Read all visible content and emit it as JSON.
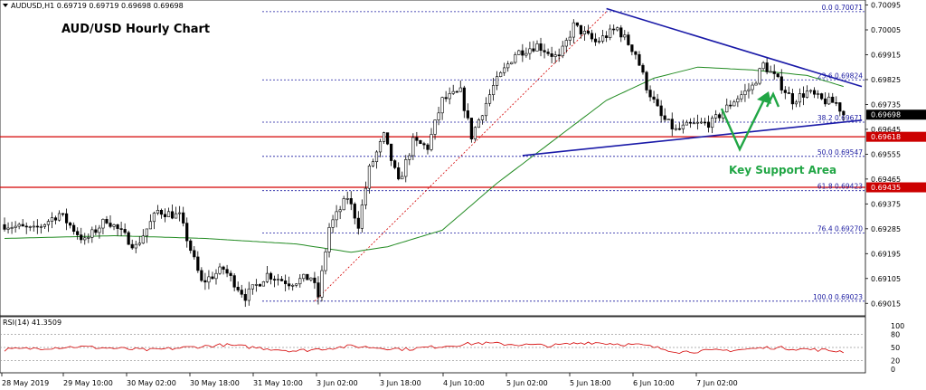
{
  "header": {
    "symbol_line": "AUDUSD,H1  0.69719 0.69719 0.69698 0.69698",
    "chart_title": "AUD/USD Hourly Chart"
  },
  "annotations": {
    "key_support": "Key Support Area"
  },
  "rsi": {
    "label": "RSI(14) 41.3509",
    "ticks": [
      "100",
      "80",
      "50",
      "20",
      "0"
    ]
  },
  "colors": {
    "candle": "#000000",
    "ma": "#228b22",
    "trendline": "#1a1aa8",
    "fib": "#1a1aa0",
    "level": "#d40000",
    "fib_diagonal": "#d40000",
    "annotation": "#21a645",
    "rsi": "#d40000",
    "price_box": "#000000",
    "level_box": "#cc0000"
  },
  "chart_data": {
    "type": "candlestick",
    "title": "AUD/USD Hourly Chart",
    "ylim": [
      0.6897,
      0.701
    ],
    "x_labels": [
      "28 May 2019",
      "29 May 10:00",
      "30 May 02:00",
      "30 May 18:00",
      "31 May 10:00",
      "3 Jun 02:00",
      "3 Jun 18:00",
      "4 Jun 10:00",
      "5 Jun 02:00",
      "5 Jun 18:00",
      "6 Jun 10:00",
      "7 Jun 02:00"
    ],
    "y_ticks": [
      "0.70095",
      "0.70005",
      "0.69915",
      "0.69825",
      "0.69735",
      "0.69645",
      "0.69555",
      "0.69465",
      "0.69375",
      "0.69285",
      "0.69195",
      "0.69105",
      "0.69015"
    ],
    "current_price": "0.69698",
    "horizontal_levels": [
      {
        "value": 0.69618,
        "label": "0.69618"
      },
      {
        "value": 0.69435,
        "label": "0.69435"
      }
    ],
    "fibonacci": [
      {
        "level": "0.0",
        "value": 0.70071,
        "label": "0.0 0.70071"
      },
      {
        "level": "23.6",
        "value": 0.69824,
        "label": "23.6 0.69824"
      },
      {
        "level": "38.2",
        "value": 0.69671,
        "label": "38.2 0.69671"
      },
      {
        "level": "50.0",
        "value": 0.69547,
        "label": "50.0 0.69547"
      },
      {
        "level": "61.8",
        "value": 0.69423,
        "label": "61.8 0.69423"
      },
      {
        "level": "76.4",
        "value": 0.6927,
        "label": "76.4 0.69270"
      },
      {
        "level": "100.0",
        "value": 0.69023,
        "label": "100.0 0.69023"
      }
    ],
    "anchors": [
      {
        "i": 0,
        "v": 0.693
      },
      {
        "i": 8,
        "v": 0.6928
      },
      {
        "i": 15,
        "v": 0.6934
      },
      {
        "i": 22,
        "v": 0.6924
      },
      {
        "i": 28,
        "v": 0.6932
      },
      {
        "i": 36,
        "v": 0.6922
      },
      {
        "i": 42,
        "v": 0.6935
      },
      {
        "i": 48,
        "v": 0.6933
      },
      {
        "i": 54,
        "v": 0.6909
      },
      {
        "i": 60,
        "v": 0.6914
      },
      {
        "i": 66,
        "v": 0.6904
      },
      {
        "i": 72,
        "v": 0.6912
      },
      {
        "i": 78,
        "v": 0.6909
      },
      {
        "i": 84,
        "v": 0.6911
      },
      {
        "i": 86,
        "v": 0.6904
      },
      {
        "i": 89,
        "v": 0.6929
      },
      {
        "i": 94,
        "v": 0.694
      },
      {
        "i": 97,
        "v": 0.693
      },
      {
        "i": 100,
        "v": 0.695
      },
      {
        "i": 104,
        "v": 0.6962
      },
      {
        "i": 108,
        "v": 0.6945
      },
      {
        "i": 112,
        "v": 0.696
      },
      {
        "i": 116,
        "v": 0.6958
      },
      {
        "i": 120,
        "v": 0.6975
      },
      {
        "i": 125,
        "v": 0.6978
      },
      {
        "i": 128,
        "v": 0.6962
      },
      {
        "i": 134,
        "v": 0.698
      },
      {
        "i": 140,
        "v": 0.6992
      },
      {
        "i": 146,
        "v": 0.6995
      },
      {
        "i": 152,
        "v": 0.699
      },
      {
        "i": 156,
        "v": 0.7002
      },
      {
        "i": 162,
        "v": 0.6996
      },
      {
        "i": 168,
        "v": 0.7001
      },
      {
        "i": 173,
        "v": 0.6992
      },
      {
        "i": 176,
        "v": 0.698
      },
      {
        "i": 180,
        "v": 0.6969
      },
      {
        "i": 184,
        "v": 0.6964
      },
      {
        "i": 188,
        "v": 0.6966
      },
      {
        "i": 194,
        "v": 0.6967
      },
      {
        "i": 200,
        "v": 0.6975
      },
      {
        "i": 205,
        "v": 0.698
      },
      {
        "i": 208,
        "v": 0.6988
      },
      {
        "i": 212,
        "v": 0.6982
      },
      {
        "i": 216,
        "v": 0.6975
      },
      {
        "i": 220,
        "v": 0.6978
      },
      {
        "i": 224,
        "v": 0.6975
      },
      {
        "i": 228,
        "v": 0.6974
      },
      {
        "i": 230,
        "v": 0.697
      }
    ],
    "ma": [
      {
        "i": 0,
        "v": 0.6925
      },
      {
        "i": 30,
        "v": 0.6926
      },
      {
        "i": 55,
        "v": 0.6925
      },
      {
        "i": 80,
        "v": 0.6923
      },
      {
        "i": 95,
        "v": 0.692
      },
      {
        "i": 105,
        "v": 0.6922
      },
      {
        "i": 120,
        "v": 0.6928
      },
      {
        "i": 135,
        "v": 0.6945
      },
      {
        "i": 150,
        "v": 0.696
      },
      {
        "i": 165,
        "v": 0.6975
      },
      {
        "i": 178,
        "v": 0.6983
      },
      {
        "i": 190,
        "v": 0.6987
      },
      {
        "i": 205,
        "v": 0.6986
      },
      {
        "i": 220,
        "v": 0.6984
      },
      {
        "i": 230,
        "v": 0.698
      }
    ],
    "triangle_upper": [
      {
        "i": 165,
        "v": 0.70082
      },
      {
        "i": 235,
        "v": 0.698
      }
    ],
    "triangle_lower": [
      {
        "i": 142,
        "v": 0.6955
      },
      {
        "i": 235,
        "v": 0.69678
      }
    ],
    "fib_diagonal": [
      {
        "i": 85,
        "v": 0.69023
      },
      {
        "i": 165,
        "v": 0.70071
      }
    ]
  }
}
